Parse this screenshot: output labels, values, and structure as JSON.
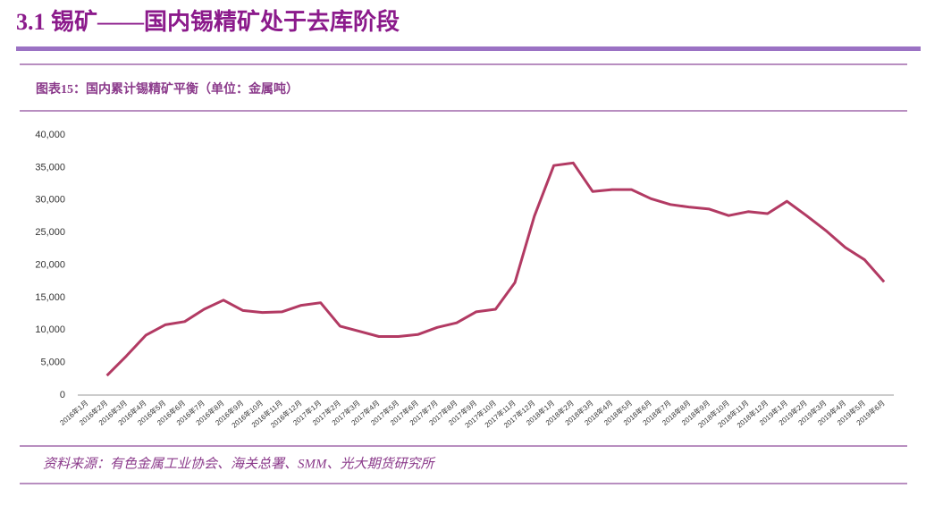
{
  "header": {
    "title": "3.1 锡矿——国内锡精矿处于去库阶段"
  },
  "chart_data": {
    "type": "line",
    "title": "图表15：国内累计锡精矿平衡（单位：金属吨）",
    "categories": [
      "2016年1月",
      "2016年2月",
      "2016年3月",
      "2016年4月",
      "2016年5月",
      "2016年6月",
      "2016年7月",
      "2016年8月",
      "2016年9月",
      "2016年10月",
      "2016年11月",
      "2016年12月",
      "2017年1月",
      "2017年2月",
      "2017年3月",
      "2017年4月",
      "2017年5月",
      "2017年6月",
      "2017年7月",
      "2017年8月",
      "2017年9月",
      "2017年10月",
      "2017年11月",
      "2017年12月",
      "2018年1月",
      "2018年2月",
      "2018年3月",
      "2018年4月",
      "2018年5月",
      "2018年6月",
      "2018年7月",
      "2018年8月",
      "2018年9月",
      "2018年10月",
      "2018年11月",
      "2018年12月",
      "2019年1月",
      "2019年2月",
      "2019年3月",
      "2019年4月",
      "2019年5月",
      "2019年6月"
    ],
    "series": [
      {
        "color": "#b23a63",
        "values": [
          null,
          3000,
          6000,
          9200,
          10800,
          11300,
          13200,
          14600,
          13000,
          12700,
          12800,
          13800,
          14200,
          10600,
          9800,
          9000,
          9000,
          9300,
          10400,
          11100,
          12800,
          13200,
          17300,
          27500,
          35300,
          35700,
          31300,
          31600,
          31600,
          30200,
          29300,
          28900,
          28600,
          27600,
          28200,
          27900,
          29800,
          27600,
          25300,
          22700,
          20800,
          17400
        ]
      }
    ],
    "ylim": [
      0,
      40000
    ],
    "yticks": [
      0,
      {
        "value": 5000,
        "label": "5,000"
      },
      {
        "value": 10000,
        "label": "10,000"
      },
      {
        "value": 15000,
        "label": "15,000"
      },
      {
        "value": 20000,
        "label": "20,000"
      },
      {
        "value": 25000,
        "label": "25,000"
      },
      {
        "value": 30000,
        "label": "30,000"
      },
      {
        "value": 35000,
        "label": "35,000"
      },
      {
        "value": 40000,
        "label": "40,000"
      }
    ],
    "grid": false
  },
  "footer": {
    "source": "资料来源：有色金属工业协会、海关总署、SMM、光大期货研究所"
  }
}
